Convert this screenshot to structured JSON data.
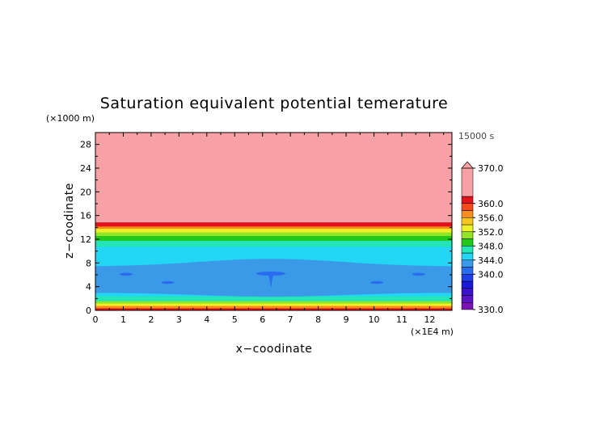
{
  "chart_data": {
    "type": "heatmap",
    "title": "Saturation equivalent potential temerature",
    "xlabel": "x−coodinate",
    "ylabel": "z−coodinate",
    "x_unit": "(×1E4 m)",
    "y_unit": "(×1000 m)",
    "time_label": "15000 s",
    "xlim": [
      0,
      12.8
    ],
    "ylim": [
      0,
      30
    ],
    "x_ticks": [
      0,
      1,
      2,
      3,
      4,
      5,
      6,
      7,
      8,
      9,
      10,
      11,
      12
    ],
    "y_ticks": [
      0,
      4,
      8,
      12,
      16,
      20,
      24,
      28
    ],
    "colorbar": {
      "min": 330,
      "max": 370,
      "labels": [
        {
          "value": 330,
          "text": "330.0"
        },
        {
          "value": 340,
          "text": "340.0"
        },
        {
          "value": 344,
          "text": "344.0"
        },
        {
          "value": 348,
          "text": "348.0"
        },
        {
          "value": 352,
          "text": "352.0"
        },
        {
          "value": 356,
          "text": "356.0"
        },
        {
          "value": 360,
          "text": "360.0"
        },
        {
          "value": 370,
          "text": "370.0"
        }
      ],
      "levels": [
        {
          "lo": 330,
          "hi": 332,
          "color": "#7b12b8"
        },
        {
          "lo": 332,
          "hi": 334,
          "color": "#5a14c2"
        },
        {
          "lo": 334,
          "hi": 336,
          "color": "#3a14cc"
        },
        {
          "lo": 336,
          "hi": 338,
          "color": "#1a1ad8"
        },
        {
          "lo": 338,
          "hi": 340,
          "color": "#1f3fe6"
        },
        {
          "lo": 340,
          "hi": 342,
          "color": "#2a6cf0"
        },
        {
          "lo": 342,
          "hi": 344,
          "color": "#3a9ae8"
        },
        {
          "lo": 344,
          "hi": 346,
          "color": "#22d6f4"
        },
        {
          "lo": 346,
          "hi": 348,
          "color": "#22e6b6"
        },
        {
          "lo": 348,
          "hi": 350,
          "color": "#22c81a"
        },
        {
          "lo": 350,
          "hi": 352,
          "color": "#92e426"
        },
        {
          "lo": 352,
          "hi": 354,
          "color": "#eef12a"
        },
        {
          "lo": 354,
          "hi": 356,
          "color": "#f7c51f"
        },
        {
          "lo": 356,
          "hi": 358,
          "color": "#f78d1c"
        },
        {
          "lo": 358,
          "hi": 360,
          "color": "#f24a1a"
        },
        {
          "lo": 360,
          "hi": 362,
          "color": "#e1121a"
        },
        {
          "lo": 362,
          "hi": 370,
          "color": "#f7a1a6"
        }
      ]
    },
    "vertical_profile": [
      {
        "z_bottom": 0.0,
        "z_top": 0.4,
        "value": 361,
        "color": "#e1121a"
      },
      {
        "z_bottom": 0.4,
        "z_top": 0.8,
        "value": 357,
        "color": "#f78d1c"
      },
      {
        "z_bottom": 0.8,
        "z_top": 1.2,
        "value": 353,
        "color": "#eef12a"
      },
      {
        "z_bottom": 1.2,
        "z_top": 1.6,
        "value": 350,
        "color": "#92e426"
      },
      {
        "z_bottom": 1.6,
        "z_top": 2.4,
        "value": 347,
        "color": "#22e6b6"
      },
      {
        "z_bottom": 2.4,
        "z_top": 3.0,
        "value": 345,
        "color": "#22d6f4"
      },
      {
        "z_bottom": 3.0,
        "z_top": 7.4,
        "value": 343,
        "color": "#3a9ae8"
      },
      {
        "z_bottom": 7.4,
        "z_top": 10.8,
        "value": 345,
        "color": "#22d6f4"
      },
      {
        "z_bottom": 10.8,
        "z_top": 11.8,
        "value": 347,
        "color": "#22e6b6"
      },
      {
        "z_bottom": 11.8,
        "z_top": 12.6,
        "value": 349,
        "color": "#22c81a"
      },
      {
        "z_bottom": 12.6,
        "z_top": 13.2,
        "value": 351,
        "color": "#92e426"
      },
      {
        "z_bottom": 13.2,
        "z_top": 13.8,
        "value": 353,
        "color": "#eef12a"
      },
      {
        "z_bottom": 13.8,
        "z_top": 14.2,
        "value": 357,
        "color": "#f78d1c"
      },
      {
        "z_bottom": 14.2,
        "z_top": 14.9,
        "value": 361,
        "color": "#e1121a"
      },
      {
        "z_bottom": 14.9,
        "z_top": 30.0,
        "value": 366,
        "color": "#f7a1a6"
      }
    ],
    "features": [
      {
        "kind": "blob",
        "x": 1.1,
        "z": 6.1,
        "value": 341,
        "color": "#2a6cf0"
      },
      {
        "kind": "blob",
        "x": 2.6,
        "z": 4.7,
        "value": 341,
        "color": "#2a6cf0"
      },
      {
        "kind": "blob",
        "x": 6.3,
        "z": 6.2,
        "value": 341,
        "color": "#2a6cf0"
      },
      {
        "kind": "blob",
        "x": 10.1,
        "z": 4.7,
        "value": 341,
        "color": "#2a6cf0"
      },
      {
        "kind": "blob",
        "x": 11.6,
        "z": 6.1,
        "value": 341,
        "color": "#2a6cf0"
      }
    ]
  }
}
